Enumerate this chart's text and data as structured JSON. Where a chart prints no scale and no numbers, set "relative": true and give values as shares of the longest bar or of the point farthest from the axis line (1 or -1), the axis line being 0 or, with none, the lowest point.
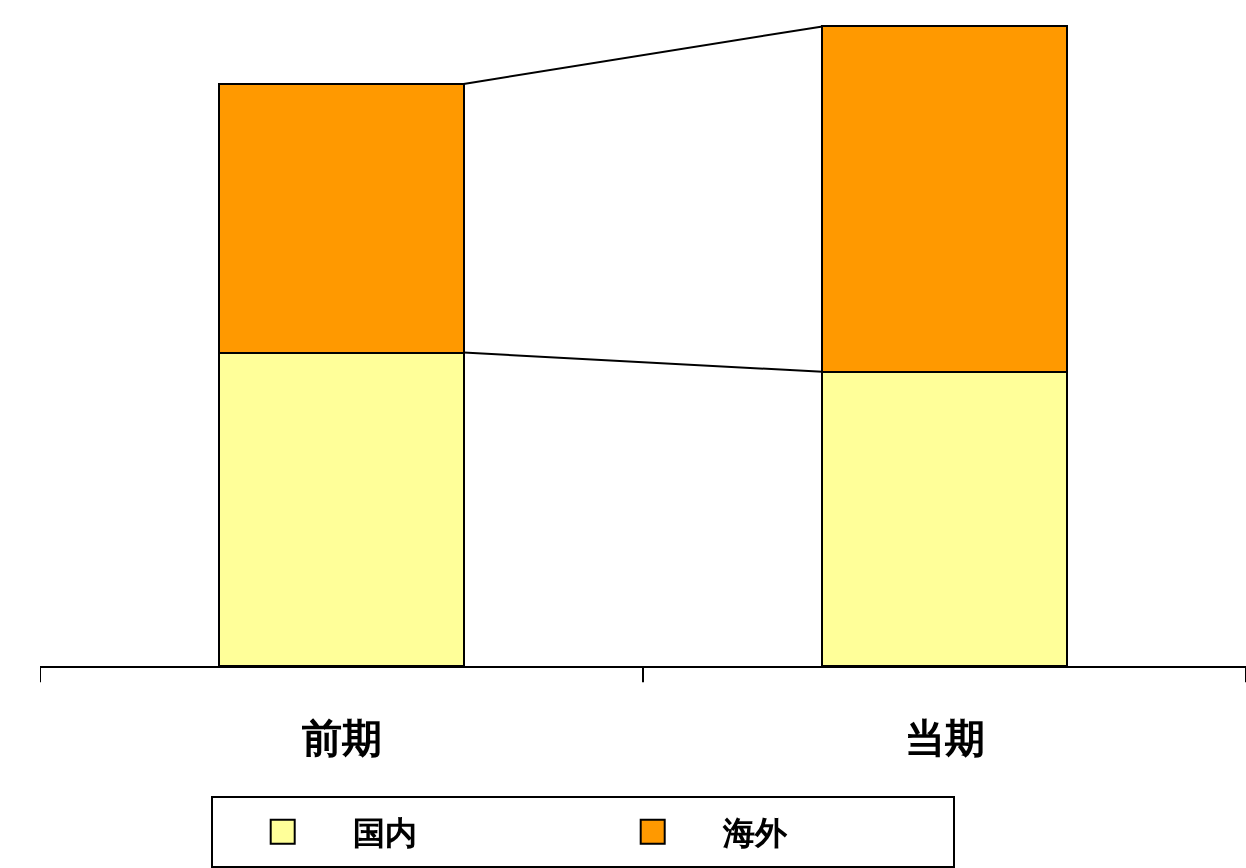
{
  "chart_data": {
    "type": "bar",
    "stacked": true,
    "relative": true,
    "categories": [
      "前期",
      "当期"
    ],
    "series": [
      {
        "name": "国内",
        "color": "#ffff99",
        "values": [
          0.49,
          0.46
        ]
      },
      {
        "name": "海外",
        "color": "#ff9900",
        "values": [
          0.42,
          0.54
        ]
      }
    ],
    "legend": "bottom"
  }
}
